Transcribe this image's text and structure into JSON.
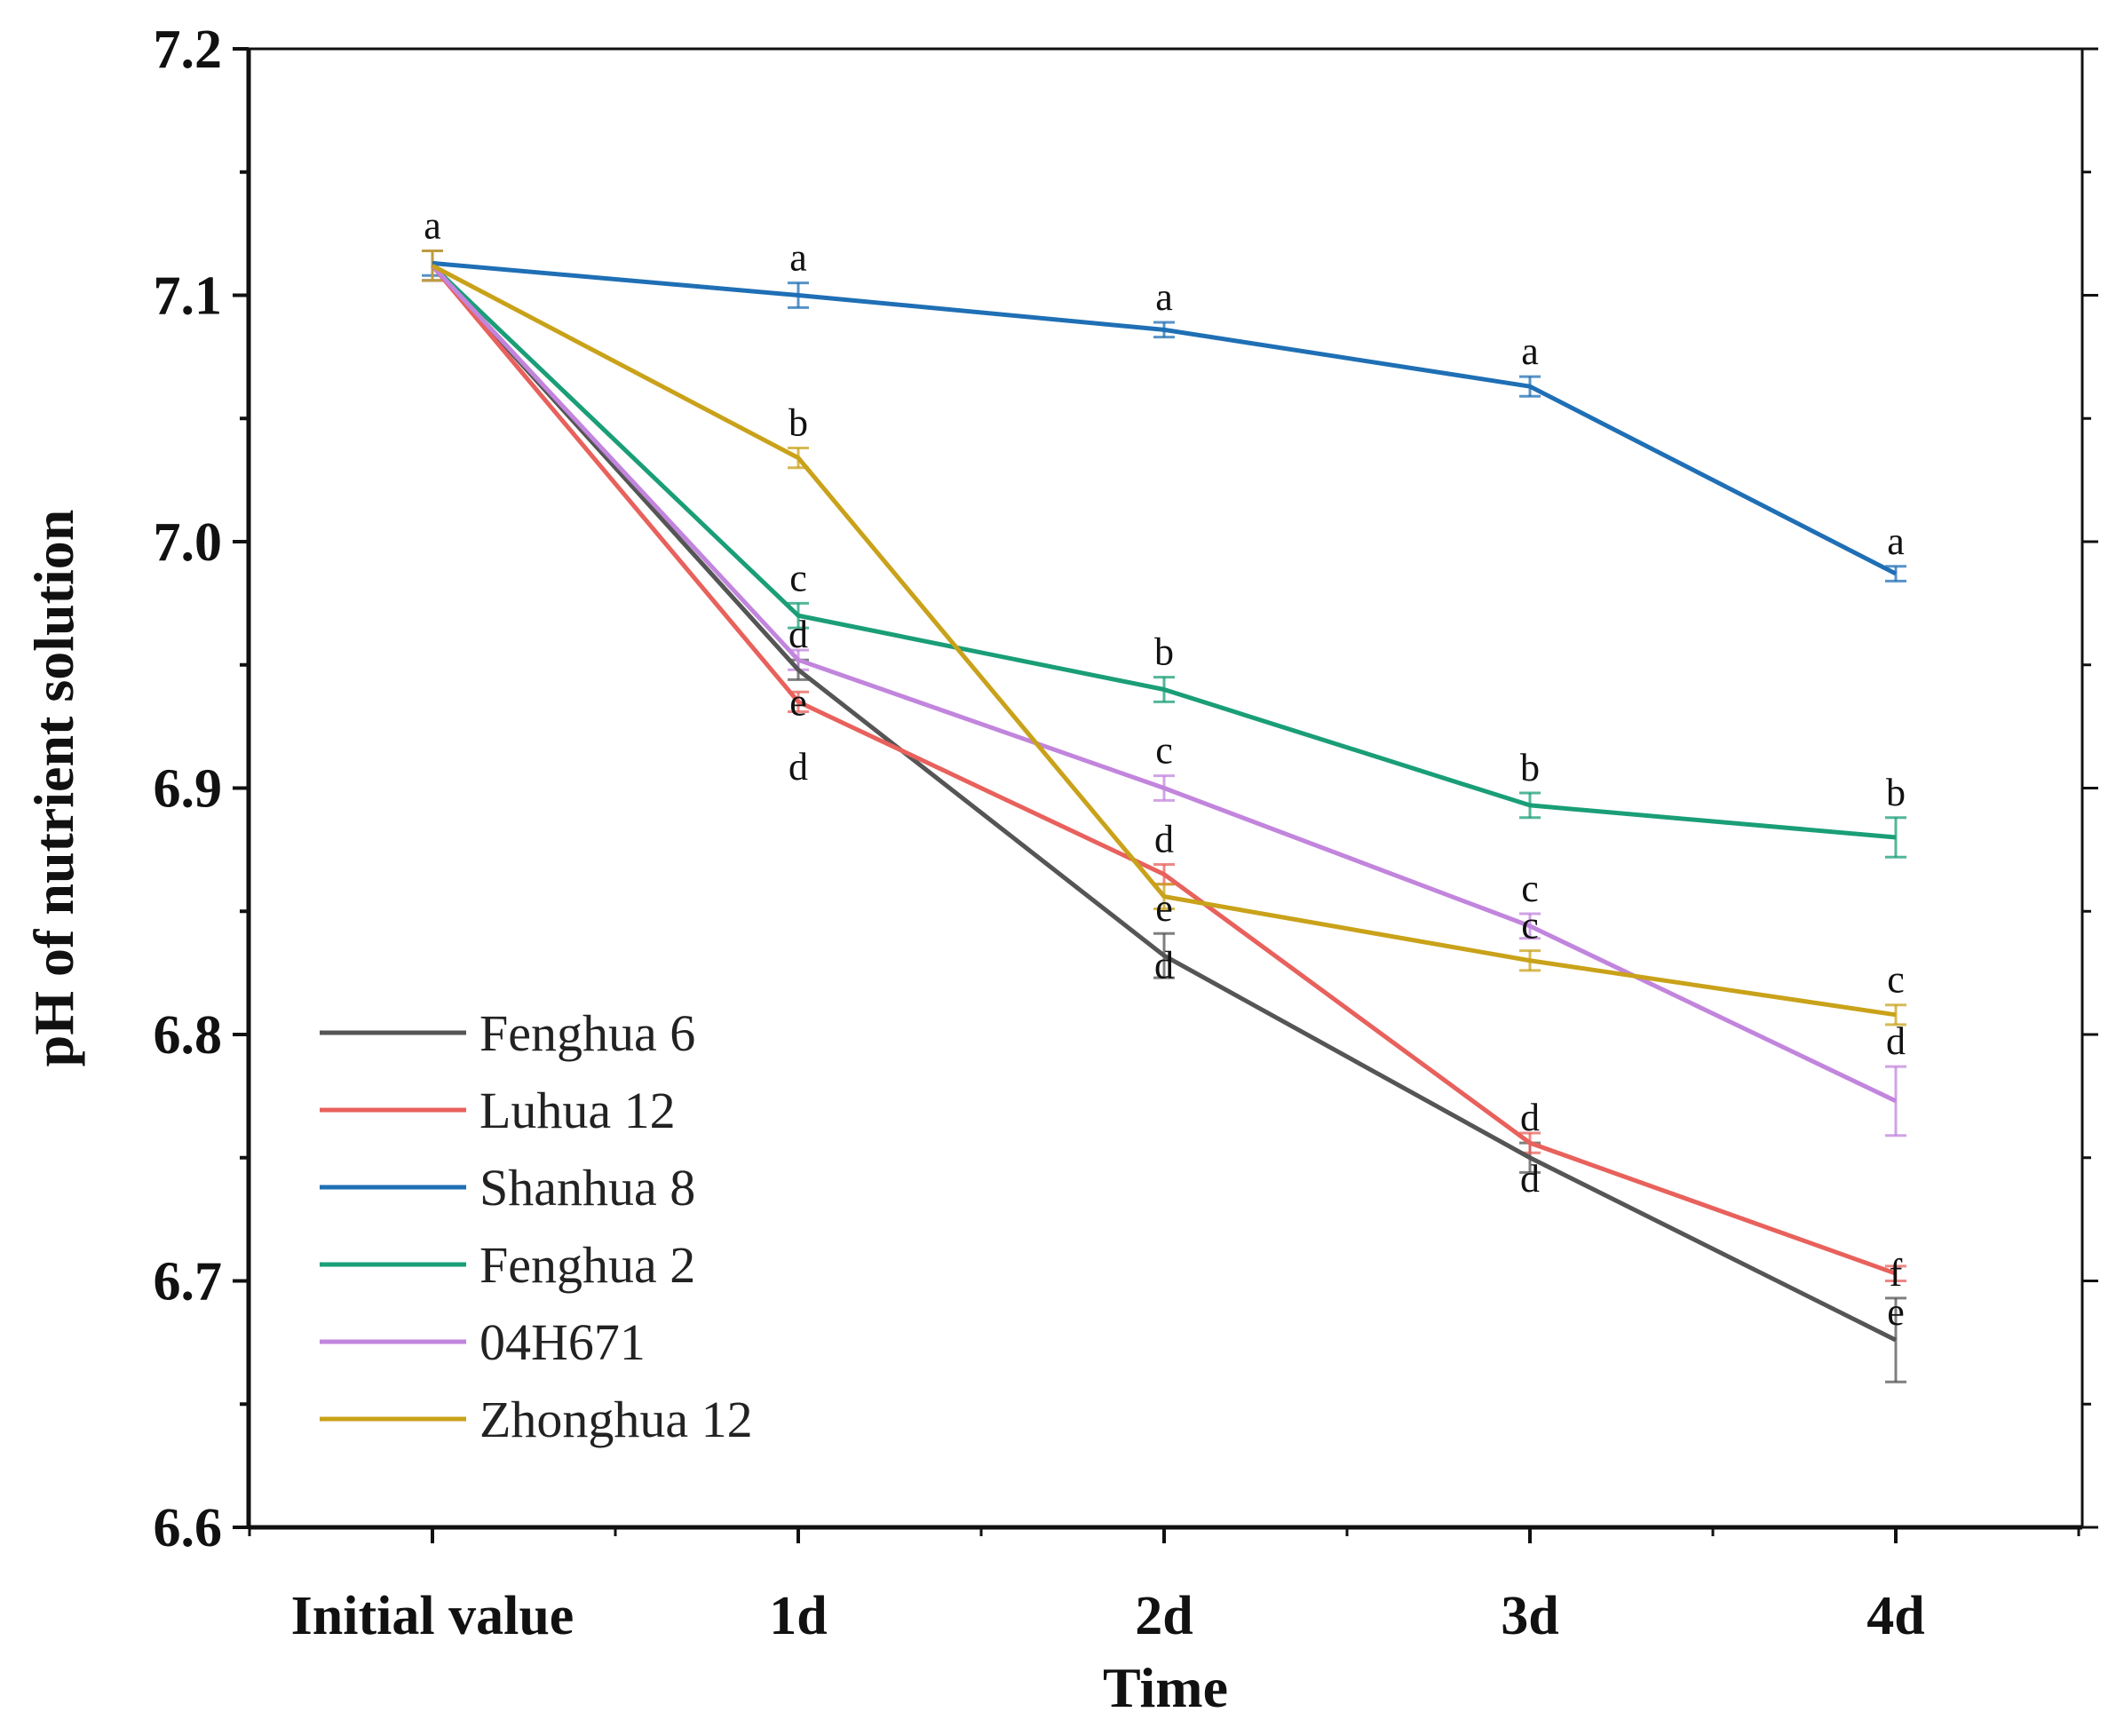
{
  "chart_data": {
    "type": "line",
    "title": "",
    "xlabel": "Time",
    "ylabel": "pH of nutrient solution",
    "categories": [
      "Initial value",
      "1d",
      "2d",
      "3d",
      "4d"
    ],
    "ylim": [
      6.6,
      7.2
    ],
    "yticks": [
      "6.6",
      "6.7",
      "6.8",
      "6.9",
      "7.0",
      "7.1",
      "7.2"
    ],
    "grid": false,
    "legend_position": "bottom-left",
    "series": [
      {
        "name": "Fenghua 6",
        "color": "#555555",
        "values": [
          7.112,
          6.948,
          6.832,
          6.75,
          6.676
        ],
        "errors": [
          0.006,
          0.004,
          0.009,
          0.006,
          0.017
        ],
        "letters": [
          "a",
          "d",
          "e",
          "d",
          "f"
        ]
      },
      {
        "name": "Luhua 12",
        "color": "#e8615c",
        "values": [
          7.112,
          6.935,
          6.865,
          6.756,
          6.703
        ],
        "errors": [
          0.006,
          0.004,
          0.004,
          0.004,
          0.003
        ],
        "letters": [
          "a",
          "e",
          "d",
          "d",
          "e"
        ]
      },
      {
        "name": "Shanhua 8",
        "color": "#1f6fb5",
        "values": [
          7.113,
          7.1,
          7.086,
          7.063,
          6.987
        ],
        "errors": [
          0.005,
          0.005,
          0.003,
          0.004,
          0.003
        ],
        "letters": [
          "a",
          "a",
          "a",
          "a",
          "a"
        ]
      },
      {
        "name": "Fenghua 2",
        "color": "#1a9e77",
        "values": [
          7.112,
          6.97,
          6.94,
          6.893,
          6.88
        ],
        "errors": [
          0.006,
          0.005,
          0.005,
          0.005,
          0.008
        ],
        "letters": [
          "a",
          "c",
          "b",
          "b",
          "b"
        ]
      },
      {
        "name": "04H671",
        "color": "#c285dd",
        "values": [
          7.112,
          6.952,
          6.9,
          6.844,
          6.773
        ],
        "errors": [
          0.006,
          0.004,
          0.005,
          0.005,
          0.014
        ],
        "letters": [
          "a",
          "d",
          "c",
          "c",
          "d"
        ]
      },
      {
        "name": "Zhonghua 12",
        "color": "#c9a21a",
        "values": [
          7.112,
          7.034,
          6.856,
          6.83,
          6.808
        ],
        "errors": [
          0.006,
          0.004,
          0.005,
          0.004,
          0.004
        ],
        "letters": [
          "a",
          "b",
          "d",
          "c",
          "c"
        ]
      }
    ]
  }
}
